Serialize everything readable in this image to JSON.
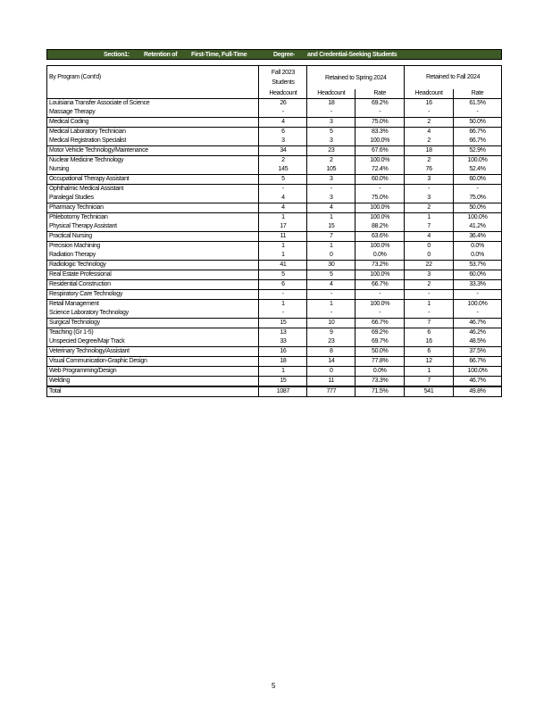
{
  "banner": {
    "parts": [
      "Section1:",
      "Retention of",
      "First-Time, Full-Time",
      "Degree-",
      "and Credential-Seeking Students"
    ],
    "color": "#3d5a26"
  },
  "header": {
    "program": "By   Program          (Cont'd)",
    "fall2023": "Fall   2023 Students",
    "spring": "Retained to Spring 2024",
    "fall2024": "Retained to Fall          2024",
    "headcount": "Headcount",
    "rate": "Rate"
  },
  "rows": [
    {
      "name": "Louisiana Transfer Associate of Science",
      "v": [
        "26",
        "18",
        "69.2%",
        "16",
        "61.5%"
      ],
      "g": 1
    },
    {
      "name": "Massage Therapy",
      "v": [
        "-",
        "-",
        "-",
        "-",
        "-"
      ],
      "g": 0
    },
    {
      "name": "Medical Coding",
      "v": [
        "4",
        "3",
        "75.0%",
        "2",
        "50.0%"
      ],
      "g": 1
    },
    {
      "name": "Medical Laboratory Technician",
      "v": [
        "6",
        "5",
        "83.3%",
        "4",
        "66.7%"
      ],
      "g": 1
    },
    {
      "name": "Medical Registration Specialist",
      "v": [
        "3",
        "3",
        "100.0%",
        "2",
        "66.7%"
      ],
      "g": 0
    },
    {
      "name": "Motor Vehicle Technology/Maintenance",
      "v": [
        "34",
        "23",
        "67.6%",
        "18",
        "52.9%"
      ],
      "g": 1
    },
    {
      "name": "Nuclear Medicine Technology",
      "v": [
        "2",
        "2",
        "100.0%",
        "2",
        "100.0%"
      ],
      "g": 1
    },
    {
      "name": "Nursing",
      "v": [
        "145",
        "105",
        "72.4%",
        "76",
        "52.4%"
      ],
      "g": 0
    },
    {
      "name": "Occupational Therapy Assistant",
      "v": [
        "5",
        "3",
        "60.0%",
        "3",
        "60.0%"
      ],
      "g": 1
    },
    {
      "name": "Ophthalmic Medical Assistant",
      "v": [
        "-",
        "-",
        "-",
        "-",
        "-"
      ],
      "g": 1
    },
    {
      "name": "Paralegal Studies",
      "v": [
        "4",
        "3",
        "75.0%",
        "3",
        "75.0%"
      ],
      "g": 0
    },
    {
      "name": "Pharmacy Technician",
      "v": [
        "4",
        "4",
        "100.0%",
        "2",
        "50.0%"
      ],
      "g": 1
    },
    {
      "name": "Phlebotomy Technician",
      "v": [
        "1",
        "1",
        "100.0%",
        "1",
        "100.0%"
      ],
      "g": 1
    },
    {
      "name": "Physical Therapy Assistant",
      "v": [
        "17",
        "15",
        "88.2%",
        "7",
        "41.2%"
      ],
      "g": 0
    },
    {
      "name": "Practical Nursing",
      "v": [
        "11",
        "7",
        "63.6%",
        "4",
        "36.4%"
      ],
      "g": 1
    },
    {
      "name": "Precision Machining",
      "v": [
        "1",
        "1",
        "100.0%",
        "0",
        "0.0%"
      ],
      "g": 1
    },
    {
      "name": "Radiation Therapy",
      "v": [
        "1",
        "0",
        "0.0%",
        "0",
        "0.0%"
      ],
      "g": 0
    },
    {
      "name": "Radiologic Technology",
      "v": [
        "41",
        "30",
        "73.2%",
        "22",
        "53.7%"
      ],
      "g": 1
    },
    {
      "name": "Real Estate Professional",
      "v": [
        "5",
        "5",
        "100.0%",
        "3",
        "60.0%"
      ],
      "g": 1
    },
    {
      "name": "Residential Construction",
      "v": [
        "6",
        "4",
        "66.7%",
        "2",
        "33.3%"
      ],
      "g": 1
    },
    {
      "name": "Respiratory Care Technology",
      "v": [
        "-",
        "-",
        "-",
        "-",
        "-"
      ],
      "g": 1
    },
    {
      "name": "Retail Management",
      "v": [
        "1",
        "1",
        "100.0%",
        "1",
        "100.0%"
      ],
      "g": 1
    },
    {
      "name": "Science Laboratory Technology",
      "v": [
        "-",
        "-",
        "-",
        "-",
        "-"
      ],
      "g": 0
    },
    {
      "name": "Surgical Technology",
      "v": [
        "15",
        "10",
        "66.7%",
        "7",
        "46.7%"
      ],
      "g": 1
    },
    {
      "name": "Teaching (Gr 1-5)",
      "v": [
        "13",
        "9",
        "69.2%",
        "6",
        "46.2%"
      ],
      "g": 1
    },
    {
      "name": "Unspecied Degree/Majr Track",
      "v": [
        "33",
        "23",
        "69.7%",
        "16",
        "48.5%"
      ],
      "g": 0
    },
    {
      "name": "Veterinary Technology/Assistant",
      "v": [
        "16",
        "8",
        "50.0%",
        "6",
        "37.5%"
      ],
      "g": 1
    },
    {
      "name": "Visual Communication-Graphic Design",
      "v": [
        "18",
        "14",
        "77.8%",
        "12",
        "66.7%"
      ],
      "g": 1
    },
    {
      "name": "Web Programming/Design",
      "v": [
        "1",
        "0",
        "0.0%",
        "1",
        "100.0%"
      ],
      "g": 1
    },
    {
      "name": "Welding",
      "v": [
        "15",
        "11",
        "73.3%",
        "7",
        "46.7%"
      ],
      "g": 1
    }
  ],
  "total": {
    "name": "Total",
    "v": [
      "1087",
      "777",
      "71.5%",
      "541",
      "49.8%"
    ]
  },
  "page_number": "5"
}
